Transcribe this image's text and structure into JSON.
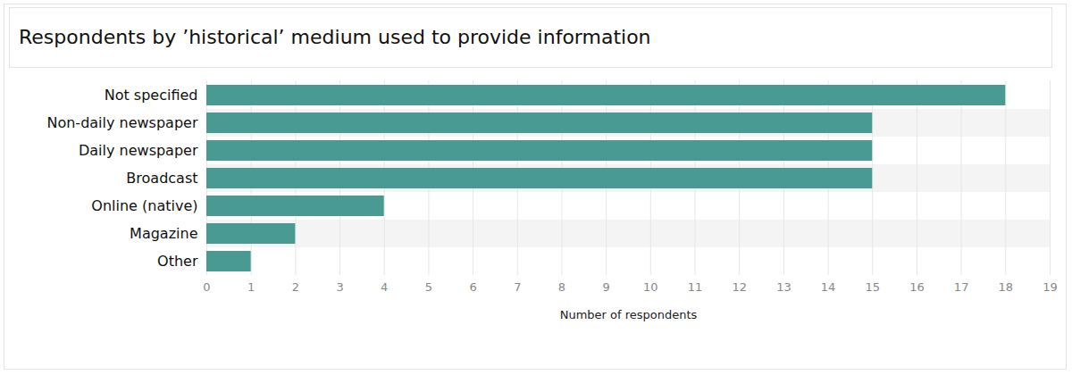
{
  "chart_data": {
    "type": "bar",
    "orientation": "horizontal",
    "title": "Respondents by ’historical’ medium used to provide information",
    "categories": [
      "Not specified",
      "Non-daily newspaper",
      "Daily newspaper",
      "Broadcast",
      "Online (native)",
      "Magazine",
      "Other"
    ],
    "values": [
      18,
      15,
      15,
      15,
      4,
      2,
      1
    ],
    "color": "#4a9a94",
    "xlabel": "Number of respondents",
    "xlim": [
      0,
      19
    ],
    "xticks": [
      0,
      1,
      2,
      3,
      4,
      5,
      6,
      7,
      8,
      9,
      10,
      11,
      12,
      13,
      14,
      15,
      16,
      17,
      18,
      19
    ],
    "grid": true
  }
}
